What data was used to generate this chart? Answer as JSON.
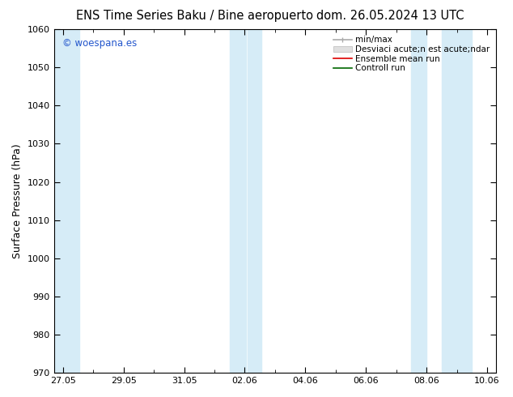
{
  "title_left": "ENS Time Series Baku / Bine aeropuerto",
  "title_right": "dom. 26.05.2024 13 UTC",
  "ylabel": "Surface Pressure (hPa)",
  "ylim": [
    970,
    1060
  ],
  "yticks": [
    970,
    980,
    990,
    1000,
    1010,
    1020,
    1030,
    1040,
    1050,
    1060
  ],
  "xtick_labels": [
    "27.05",
    "29.05",
    "31.05",
    "02.06",
    "04.06",
    "06.06",
    "08.06",
    "10.06"
  ],
  "watermark": "© woespana.es",
  "bg_color": "#ffffff",
  "band_color": "#d6ecf7",
  "legend_line1": "min/max",
  "legend_line2": "Desviaci acute;n est acute;ndar",
  "legend_line3": "Ensemble mean run",
  "legend_line4": "Controll run",
  "legend_color1": "#aaaaaa",
  "legend_color2": "#cccccc",
  "legend_color3": "#dd0000",
  "legend_color4": "#006600",
  "title_fontsize": 10.5,
  "tick_fontsize": 8,
  "ylabel_fontsize": 9,
  "legend_fontsize": 7.5
}
